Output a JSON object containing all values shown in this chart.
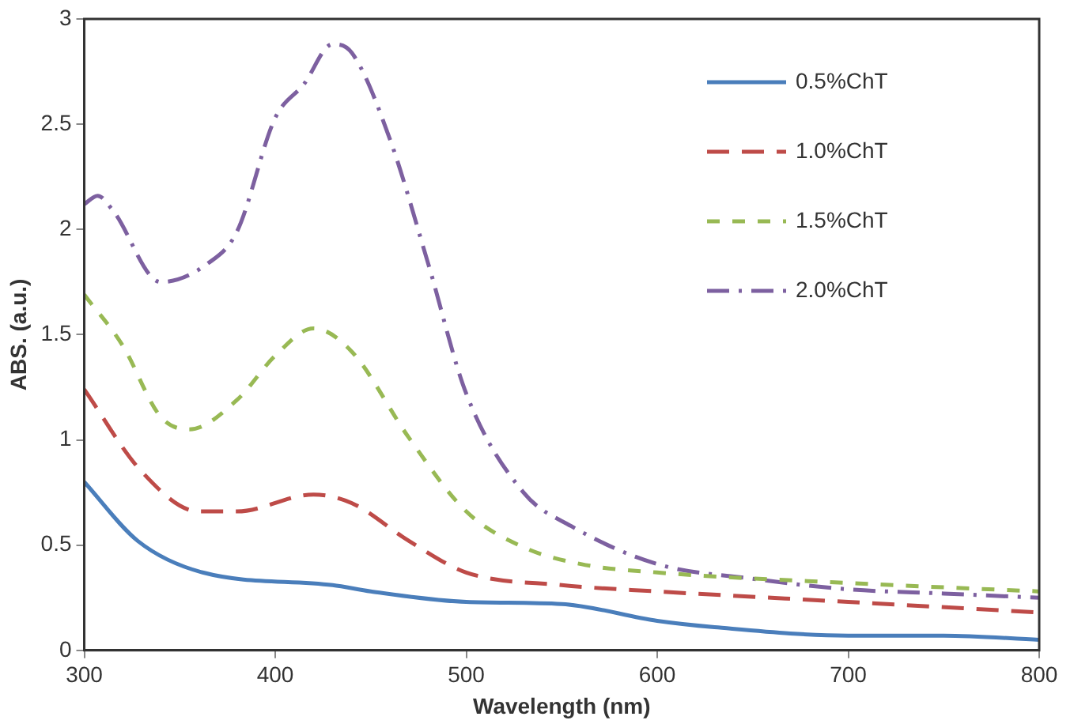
{
  "chart_data": {
    "type": "line",
    "xlabel": "Wavelength (nm)",
    "ylabel": "ABS. (a.u.)",
    "xlim": [
      300,
      800
    ],
    "xticks": [
      300,
      400,
      500,
      600,
      700,
      800
    ],
    "ylim": [
      0,
      3
    ],
    "yticks": [
      0,
      0.5,
      1,
      1.5,
      2,
      2.5,
      3
    ],
    "grid": false,
    "legend": "top right",
    "marker": "none",
    "series": [
      {
        "name": "0.5%ChT",
        "color": "#4a7ebb",
        "line_style": "solid",
        "x": [
          300,
          328,
          362,
          430,
          450,
          500,
          550,
          600,
          630,
          700,
          750,
          800
        ],
        "values": [
          0.8,
          0.52,
          0.37,
          0.31,
          0.28,
          0.23,
          0.22,
          0.14,
          0.11,
          0.07,
          0.07,
          0.05
        ]
      },
      {
        "name": "1.0%ChT",
        "color": "#be4b48",
        "line_style": "dashed",
        "x": [
          300,
          330,
          360,
          380,
          420,
          440,
          470,
          500,
          550,
          600,
          700,
          800
        ],
        "values": [
          1.24,
          0.85,
          0.66,
          0.66,
          0.74,
          0.7,
          0.52,
          0.37,
          0.31,
          0.28,
          0.23,
          0.18
        ]
      },
      {
        "name": "1.5%ChT",
        "color": "#98b954",
        "line_style": "dashed",
        "x": [
          300,
          320,
          340,
          355,
          380,
          400,
          420,
          440,
          470,
          500,
          530,
          560,
          600,
          700,
          800
        ],
        "values": [
          1.69,
          1.45,
          1.11,
          1.05,
          1.19,
          1.4,
          1.53,
          1.42,
          1.01,
          0.66,
          0.49,
          0.41,
          0.37,
          0.32,
          0.28
        ]
      },
      {
        "name": "2.0%ChT",
        "color": "#7d60a0",
        "line_style": "dashdot",
        "x": [
          300,
          307,
          315,
          340,
          365,
          380,
          400,
          415,
          430,
          440,
          460,
          480,
          500,
          530,
          555,
          600,
          650,
          700,
          750,
          800
        ],
        "values": [
          2.12,
          2.16,
          2.09,
          1.75,
          1.84,
          1.99,
          2.53,
          2.69,
          2.88,
          2.84,
          2.43,
          1.84,
          1.22,
          0.75,
          0.59,
          0.41,
          0.34,
          0.29,
          0.27,
          0.25
        ]
      }
    ]
  }
}
